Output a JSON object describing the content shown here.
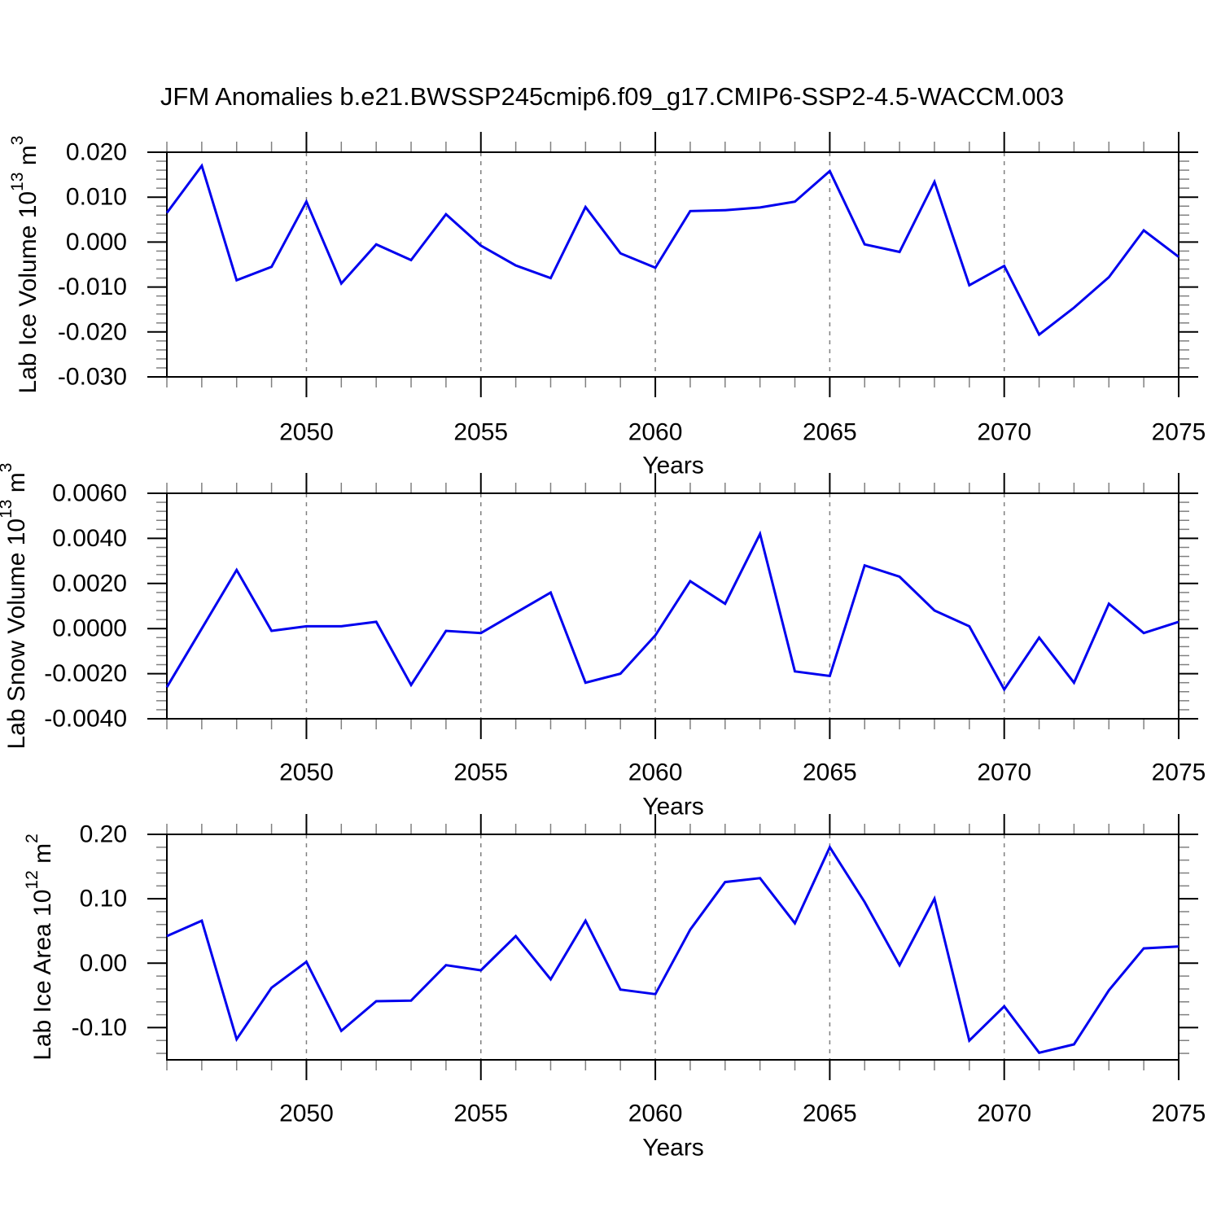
{
  "main_title": "JFM Anomalies b.e21.BWSSP245cmip6.f09_g17.CMIP6-SSP2-4.5-WACCM.003",
  "x_axis_title": "Years",
  "colors": {
    "line": "#0000ee",
    "grid": "#808080",
    "axis": "#000000",
    "minor_tick": "#808080"
  },
  "x_major_tick_labels": [
    "2050",
    "2055",
    "2060",
    "2065",
    "2070",
    "2075"
  ],
  "chart_data": [
    {
      "type": "line",
      "ylabel_plain": "Lab Ice Volume 10^13 m^3",
      "ylabel_segments": [
        {
          "t": "Lab Ice Volume 10",
          "sup": false
        },
        {
          "t": "13",
          "sup": true
        },
        {
          "t": " m",
          "sup": false
        },
        {
          "t": "3",
          "sup": true
        }
      ],
      "xlabel": "Years",
      "x": [
        2046,
        2047,
        2048,
        2049,
        2050,
        2051,
        2052,
        2053,
        2054,
        2055,
        2056,
        2057,
        2058,
        2059,
        2060,
        2061,
        2062,
        2063,
        2064,
        2065,
        2066,
        2067,
        2068,
        2069,
        2070,
        2071,
        2072,
        2073,
        2074,
        2075
      ],
      "values": [
        0.0065,
        0.017,
        -0.0085,
        -0.0055,
        0.009,
        -0.0092,
        -0.0005,
        -0.004,
        0.0062,
        -0.0008,
        -0.0052,
        -0.008,
        0.0078,
        -0.0025,
        -0.0057,
        0.0069,
        0.0071,
        0.0077,
        0.009,
        0.0158,
        -0.0005,
        -0.0022,
        0.0134,
        -0.0096,
        -0.0053,
        -0.0206,
        -0.0146,
        -0.0078,
        0.0026,
        -0.0033
      ],
      "xlim": [
        2046,
        2075
      ],
      "ylim": [
        -0.03,
        0.02
      ],
      "yticks": [
        0.02,
        0.01,
        0.0,
        -0.01,
        -0.02,
        -0.03
      ],
      "ytick_labels": [
        "0.020",
        "0.010",
        "0.000",
        "-0.010",
        "-0.020",
        "-0.030"
      ],
      "y_minor_step": 0.002,
      "xticks_major": [
        2050,
        2055,
        2060,
        2065,
        2070,
        2075
      ],
      "x_minor_step": 1,
      "grid": "vertical dashed at major x ticks",
      "legend": null
    },
    {
      "type": "line",
      "ylabel_plain": "Lab Snow Volume 10^13 m^3",
      "ylabel_segments": [
        {
          "t": "Lab Snow Volume 10",
          "sup": false
        },
        {
          "t": "13",
          "sup": true
        },
        {
          "t": " m",
          "sup": false
        },
        {
          "t": "3",
          "sup": true
        }
      ],
      "xlabel": "Years",
      "x": [
        2046,
        2047,
        2048,
        2049,
        2050,
        2051,
        2052,
        2053,
        2054,
        2055,
        2056,
        2057,
        2058,
        2059,
        2060,
        2061,
        2062,
        2063,
        2064,
        2065,
        2066,
        2067,
        2068,
        2069,
        2070,
        2071,
        2072,
        2073,
        2074,
        2075
      ],
      "values": [
        -0.0026,
        0.0,
        0.0026,
        -0.0001,
        0.0001,
        0.0001,
        0.0003,
        -0.0025,
        -0.0001,
        -0.0002,
        0.0007,
        0.0016,
        -0.0024,
        -0.002,
        -0.0003,
        0.0021,
        0.0011,
        0.0042,
        -0.0019,
        -0.0021,
        0.0028,
        0.0023,
        0.0008,
        0.0001,
        -0.0027,
        -0.0004,
        -0.0024,
        0.0011,
        -0.0002,
        0.0003
      ],
      "xlim": [
        2046,
        2075
      ],
      "ylim": [
        -0.004,
        0.006
      ],
      "yticks": [
        0.006,
        0.004,
        0.002,
        0.0,
        -0.002,
        -0.004
      ],
      "ytick_labels": [
        "0.0060",
        "0.0040",
        "0.0020",
        "0.0000",
        "-0.0020",
        "-0.0040"
      ],
      "y_minor_step": 0.0004,
      "xticks_major": [
        2050,
        2055,
        2060,
        2065,
        2070,
        2075
      ],
      "x_minor_step": 1,
      "grid": "vertical dashed at major x ticks",
      "legend": null
    },
    {
      "type": "line",
      "ylabel_plain": "Lab Ice Area 10^12 m^2",
      "ylabel_segments": [
        {
          "t": "Lab Ice Area 10",
          "sup": false
        },
        {
          "t": "12",
          "sup": true
        },
        {
          "t": " m",
          "sup": false
        },
        {
          "t": "2",
          "sup": true
        }
      ],
      "xlabel": "Years",
      "x": [
        2046,
        2047,
        2048,
        2049,
        2050,
        2051,
        2052,
        2053,
        2054,
        2055,
        2056,
        2057,
        2058,
        2059,
        2060,
        2061,
        2062,
        2063,
        2064,
        2065,
        2066,
        2067,
        2068,
        2069,
        2070,
        2071,
        2072,
        2073,
        2074,
        2075
      ],
      "values": [
        0.042,
        0.066,
        -0.118,
        -0.038,
        0.002,
        -0.105,
        -0.059,
        -0.058,
        -0.003,
        -0.011,
        0.042,
        -0.025,
        0.066,
        -0.041,
        -0.048,
        0.052,
        0.126,
        0.132,
        0.062,
        0.18,
        0.095,
        -0.003,
        0.1,
        -0.12,
        -0.067,
        -0.139,
        -0.126,
        -0.042,
        0.023,
        0.026
      ],
      "xlim": [
        2046,
        2075
      ],
      "ylim": [
        -0.15,
        0.2
      ],
      "yticks": [
        0.2,
        0.1,
        0.0,
        -0.1
      ],
      "ytick_labels": [
        "0.20",
        "0.10",
        "0.00",
        "-0.10"
      ],
      "y_minor_step": 0.02,
      "xticks_major": [
        2050,
        2055,
        2060,
        2065,
        2070,
        2075
      ],
      "x_minor_step": 1,
      "grid": "vertical dashed at major x ticks",
      "legend": null
    }
  ]
}
